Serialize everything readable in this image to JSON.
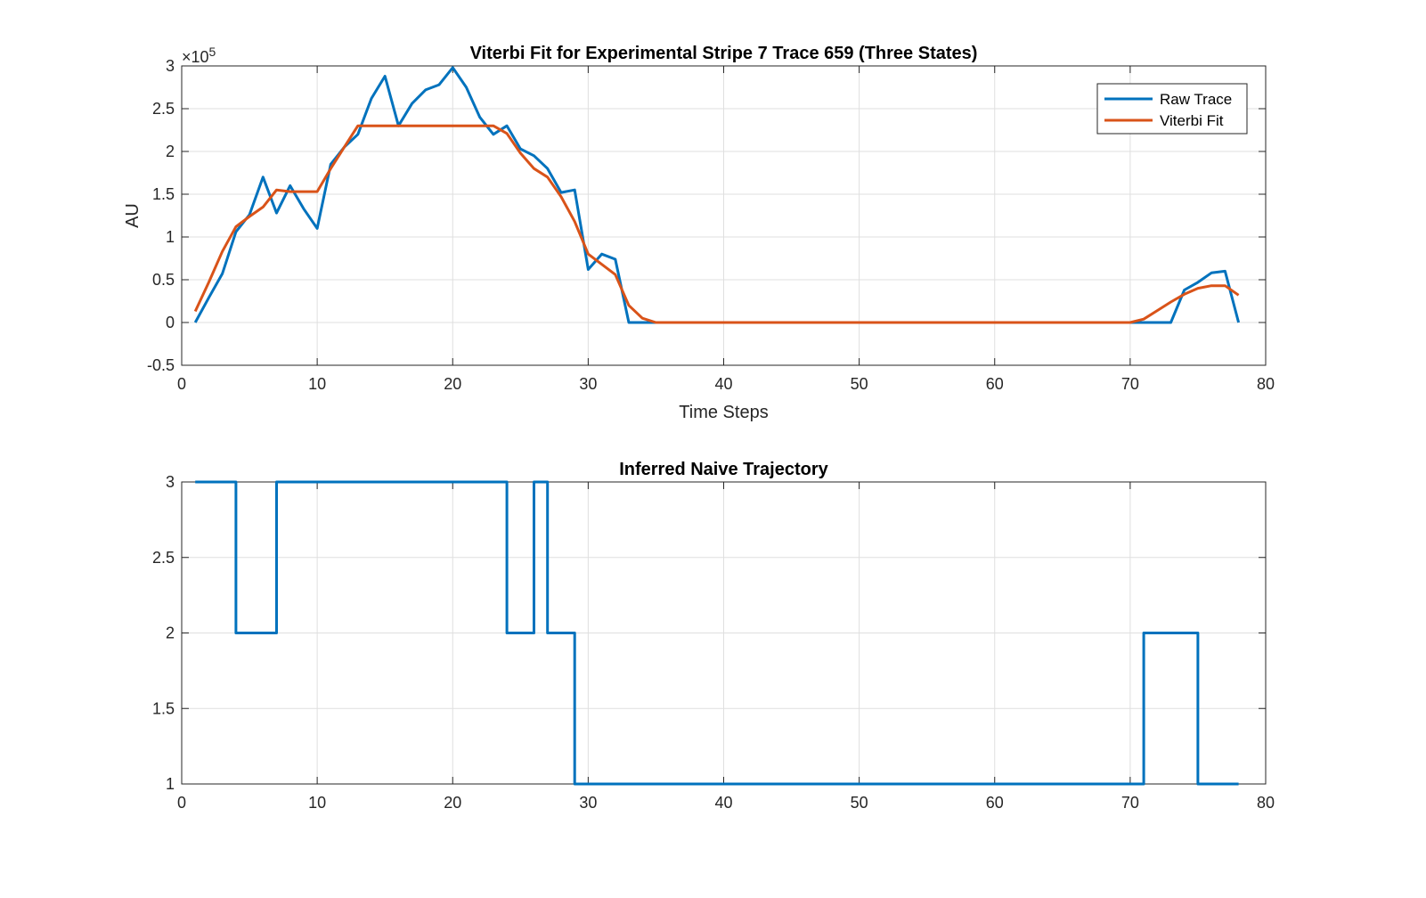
{
  "chart_data": [
    {
      "type": "line",
      "title": "Viterbi Fit for Experimental Stripe 7 Trace 659 (Three States)",
      "xlabel": "Time Steps",
      "ylabel": "AU",
      "exponent_label": "×10^5",
      "exponent_base": "×10",
      "exponent_power": "5",
      "xlim": [
        0,
        80
      ],
      "ylim": [
        -0.5,
        3
      ],
      "y_scale_factor": 100000,
      "xticks": [
        0,
        10,
        20,
        30,
        40,
        50,
        60,
        70,
        80
      ],
      "yticks": [
        -0.5,
        0,
        0.5,
        1,
        1.5,
        2,
        2.5,
        3
      ],
      "xtick_labels": [
        "0",
        "10",
        "20",
        "30",
        "40",
        "50",
        "60",
        "70",
        "80"
      ],
      "ytick_labels": [
        "-0.5",
        "0",
        "0.5",
        "1",
        "1.5",
        "2",
        "2.5",
        "3"
      ],
      "grid": true,
      "legend_position": "top-right",
      "series": [
        {
          "name": "Raw Trace",
          "color": "#0072BD",
          "x": [
            1,
            2,
            3,
            4,
            5,
            6,
            7,
            8,
            9,
            10,
            11,
            12,
            13,
            14,
            15,
            16,
            17,
            18,
            19,
            20,
            21,
            22,
            23,
            24,
            25,
            26,
            27,
            28,
            29,
            30,
            31,
            32,
            33,
            34,
            35,
            36,
            37,
            38,
            39,
            40,
            41,
            42,
            43,
            44,
            45,
            46,
            47,
            48,
            49,
            50,
            51,
            52,
            53,
            54,
            55,
            56,
            57,
            58,
            59,
            60,
            61,
            62,
            63,
            64,
            65,
            66,
            67,
            68,
            69,
            70,
            71,
            72,
            73,
            74,
            75,
            76,
            77,
            78
          ],
          "values": [
            0.0,
            0.29,
            0.57,
            1.06,
            1.26,
            1.7,
            1.28,
            1.6,
            1.33,
            1.1,
            1.85,
            2.05,
            2.2,
            2.62,
            2.88,
            2.3,
            2.56,
            2.72,
            2.78,
            2.98,
            2.75,
            2.4,
            2.2,
            2.3,
            2.03,
            1.95,
            1.8,
            1.52,
            1.55,
            0.62,
            0.8,
            0.74,
            0.0,
            0.0,
            0.0,
            0.0,
            0.0,
            0.0,
            0.0,
            0.0,
            0.0,
            0.0,
            0.0,
            0.0,
            0.0,
            0.0,
            0.0,
            0.0,
            0.0,
            0.0,
            0.0,
            0.0,
            0.0,
            0.0,
            0.0,
            0.0,
            0.0,
            0.0,
            0.0,
            0.0,
            0.0,
            0.0,
            0.0,
            0.0,
            0.0,
            0.0,
            0.0,
            0.0,
            0.0,
            0.0,
            0.0,
            0.0,
            0.0,
            0.38,
            0.47,
            0.58,
            0.6,
            0.0
          ]
        },
        {
          "name": "Viterbi Fit",
          "color": "#D95319",
          "x": [
            1,
            2,
            3,
            4,
            5,
            6,
            7,
            8,
            9,
            10,
            11,
            12,
            13,
            14,
            15,
            16,
            17,
            18,
            19,
            20,
            21,
            22,
            23,
            24,
            25,
            26,
            27,
            28,
            29,
            30,
            31,
            32,
            33,
            34,
            35,
            36,
            37,
            38,
            39,
            40,
            41,
            42,
            43,
            44,
            45,
            46,
            47,
            48,
            49,
            50,
            51,
            52,
            53,
            54,
            55,
            56,
            57,
            58,
            59,
            60,
            61,
            62,
            63,
            64,
            65,
            66,
            67,
            68,
            69,
            70,
            71,
            72,
            73,
            74,
            75,
            76,
            77,
            78
          ],
          "values": [
            0.13,
            0.47,
            0.83,
            1.12,
            1.24,
            1.35,
            1.55,
            1.53,
            1.53,
            1.53,
            1.8,
            2.05,
            2.3,
            2.3,
            2.3,
            2.3,
            2.3,
            2.3,
            2.3,
            2.3,
            2.3,
            2.3,
            2.3,
            2.21,
            1.98,
            1.8,
            1.7,
            1.47,
            1.18,
            0.8,
            0.68,
            0.56,
            0.2,
            0.05,
            0.0,
            0.0,
            0.0,
            0.0,
            0.0,
            0.0,
            0.0,
            0.0,
            0.0,
            0.0,
            0.0,
            0.0,
            0.0,
            0.0,
            0.0,
            0.0,
            0.0,
            0.0,
            0.0,
            0.0,
            0.0,
            0.0,
            0.0,
            0.0,
            0.0,
            0.0,
            0.0,
            0.0,
            0.0,
            0.0,
            0.0,
            0.0,
            0.0,
            0.0,
            0.0,
            0.0,
            0.04,
            0.14,
            0.24,
            0.33,
            0.4,
            0.43,
            0.43,
            0.32
          ]
        }
      ]
    },
    {
      "type": "line",
      "title": "Inferred Naive Trajectory",
      "xlabel": "",
      "ylabel": "",
      "xlim": [
        0,
        80
      ],
      "ylim": [
        1,
        3
      ],
      "xticks": [
        0,
        10,
        20,
        30,
        40,
        50,
        60,
        70,
        80
      ],
      "yticks": [
        1,
        1.5,
        2,
        2.5,
        3
      ],
      "xtick_labels": [
        "0",
        "10",
        "20",
        "30",
        "40",
        "50",
        "60",
        "70",
        "80"
      ],
      "ytick_labels": [
        "1",
        "1.5",
        "2",
        "2.5",
        "3"
      ],
      "grid": true,
      "series": [
        {
          "name": "",
          "color": "#0072BD",
          "x": [
            1,
            4,
            4,
            7,
            7,
            24,
            24,
            26,
            26,
            27,
            27,
            29,
            29,
            71,
            71,
            75,
            75,
            78
          ],
          "values": [
            3,
            3,
            2,
            2,
            3,
            3,
            2,
            2,
            3,
            3,
            2,
            2,
            1,
            1,
            2,
            2,
            1,
            1
          ]
        }
      ]
    }
  ]
}
